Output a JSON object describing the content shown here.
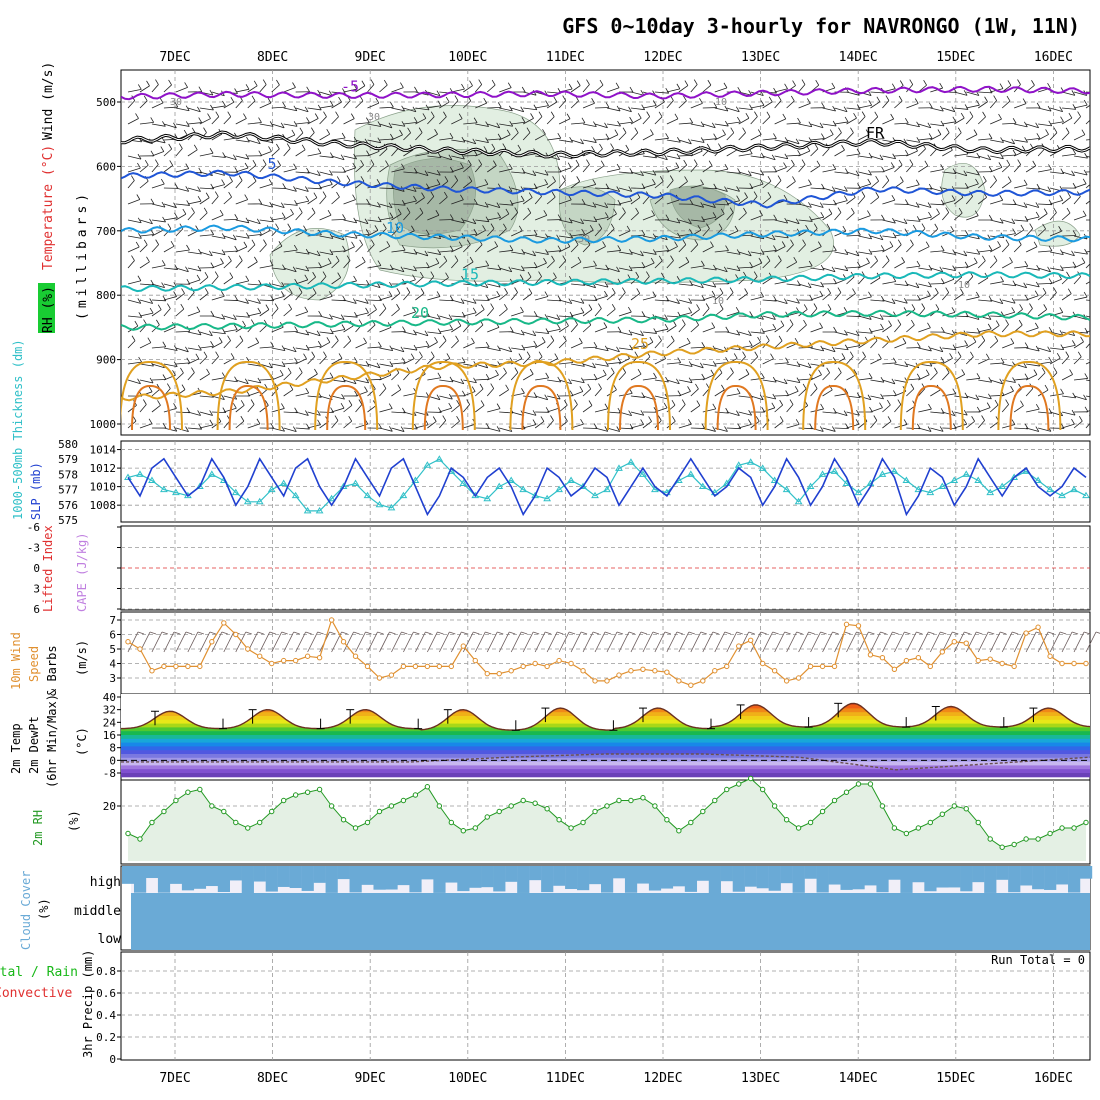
{
  "title": "GFS 0~10day 3-hourly for NAVRONGO (1W, 11N)",
  "dates": [
    "7DEC",
    "8DEC",
    "9DEC",
    "10DEC",
    "11DEC",
    "12DEC",
    "13DEC",
    "14DEC",
    "15DEC",
    "16DEC"
  ],
  "colors": {
    "purple": "#8f12c8",
    "black": "#000000",
    "blue": "#1f55d6",
    "skyblue": "#1a9ae0",
    "teal": "#19b8b8",
    "green": "#18b888",
    "gold": "#e0a020",
    "orange": "#e07820",
    "magenta": "#e0108c",
    "slp": "#2040d0",
    "thick": "#30c0c8",
    "wind": "#e09030",
    "rh": "#229922",
    "cloud": "#6aaad6",
    "cloudbg": "#f1eff8",
    "rhfill": "#e4f0e4"
  },
  "upper_air": {
    "panel_labels": {
      "wind": "Wind (m/s)",
      "temperature": "Temperature (°C)",
      "rh": "RH (%)",
      "unit": "(millibars)"
    },
    "yticks": [
      "500",
      "600",
      "700",
      "800",
      "900",
      "1000"
    ],
    "isotherms": [
      {
        "label": "-5",
        "level_mb": [
          492,
          488,
          490,
          489,
          487,
          491,
          486,
          482,
          480,
          483
        ]
      },
      {
        "label": "FR",
        "level_mb": [
          560,
          550,
          565,
          575,
          582,
          578,
          570,
          562,
          575,
          572
        ]
      },
      {
        "label": "5",
        "level_mb": [
          615,
          610,
          625,
          635,
          640,
          645,
          660,
          635,
          642,
          640
        ]
      },
      {
        "label": "10",
        "level_mb": [
          700,
          695,
          705,
          710,
          715,
          712,
          705,
          700,
          710,
          713
        ]
      },
      {
        "label": "15",
        "level_mb": [
          790,
          788,
          785,
          782,
          780,
          778,
          775,
          770,
          768,
          770
        ]
      },
      {
        "label": "20",
        "level_mb": [
          850,
          848,
          845,
          842,
          840,
          838,
          830,
          828,
          830,
          835
        ]
      },
      {
        "label": "25",
        "level_mb": [
          960,
          950,
          930,
          910,
          905,
          890,
          880,
          870,
          860,
          860
        ]
      }
    ],
    "rh_labels": [
      "30",
      "30",
      "10",
      "10",
      "30",
      "10"
    ]
  },
  "slp_thickness": {
    "left_labels": {
      "thickness": "1000-500mb Thickness (dm)",
      "slp": "SLP (mb)"
    },
    "thickness_ticks": [
      "580",
      "579",
      "578",
      "577",
      "576",
      "575"
    ],
    "slp_ticks": [
      "1014",
      "1012",
      "1010",
      "1008"
    ],
    "slp": [
      1011,
      1009,
      1012,
      1013,
      1011,
      1009,
      1010,
      1013,
      1011,
      1008,
      1010,
      1013,
      1011,
      1009,
      1012,
      1013,
      1010,
      1008,
      1010,
      1013,
      1011,
      1009,
      1012,
      1013,
      1010,
      1007,
      1009,
      1012,
      1011,
      1009,
      1011,
      1012,
      1010,
      1007,
      1009,
      1012,
      1011,
      1009,
      1010,
      1012,
      1011,
      1008,
      1010,
      1012,
      1010,
      1009,
      1011,
      1013,
      1011,
      1009,
      1010,
      1012,
      1011,
      1008,
      1010,
      1013,
      1011,
      1008,
      1010,
      1013,
      1011,
      1008,
      1010,
      1013,
      1011,
      1007,
      1009,
      1012,
      1011,
      1008,
      1010,
      1013,
      1011,
      1009,
      1011,
      1012,
      1010,
      1009,
      1010,
      1012,
      1011
    ],
    "thickness": [
      577.8,
      578.0,
      577.6,
      577.0,
      576.8,
      576.6,
      577.2,
      578.0,
      577.6,
      576.8,
      576.2,
      576.2,
      577.0,
      577.4,
      576.6,
      575.6,
      575.6,
      576.4,
      577.2,
      577.4,
      576.6,
      576.0,
      575.8,
      576.6,
      577.6,
      578.6,
      579.0,
      578.2,
      577.4,
      576.6,
      576.4,
      577.2,
      577.6,
      577.0,
      576.6,
      576.4,
      577.0,
      577.6,
      577.2,
      576.6,
      577.0,
      578.4,
      578.8,
      578.0,
      577.0,
      576.8,
      577.6,
      578.0,
      577.2,
      576.8,
      577.4,
      578.6,
      578.8,
      578.4,
      577.6,
      577.0,
      576.2,
      577.2,
      578.0,
      578.2,
      577.4,
      576.8,
      577.4,
      578.0,
      578.2,
      577.6,
      577.0,
      576.8,
      577.2,
      577.6,
      578.0,
      577.6,
      576.8,
      577.2,
      577.8,
      578.2,
      577.6,
      577.0,
      576.6,
      577.0,
      576.6
    ]
  },
  "cape_li": {
    "left_labels": {
      "li": "Lifted Index",
      "cape": "CAPE (J/kg)"
    },
    "yticks": [
      "-6",
      "-3",
      "0",
      "3",
      "6"
    ]
  },
  "wind10m": {
    "left_labels": {
      "title": "10m Wind",
      "speed": "Speed",
      "barbs": "& Barbs",
      "unit": "(m/s)"
    },
    "yticks": [
      "7",
      "6",
      "5",
      "4",
      "3"
    ],
    "speed": [
      5.5,
      5.0,
      3.5,
      3.8,
      3.8,
      3.8,
      3.8,
      5.5,
      6.8,
      6.0,
      5.0,
      4.5,
      4.0,
      4.2,
      4.2,
      4.5,
      4.4,
      7.0,
      5.5,
      4.5,
      3.8,
      3.0,
      3.2,
      3.8,
      3.8,
      3.8,
      3.8,
      3.8,
      5.2,
      4.2,
      3.3,
      3.3,
      3.5,
      3.8,
      4.0,
      3.8,
      4.2,
      4.0,
      3.5,
      2.8,
      2.8,
      3.2,
      3.5,
      3.6,
      3.5,
      3.4,
      2.8,
      2.5,
      2.8,
      3.5,
      3.8,
      5.2,
      5.6,
      4.0,
      3.5,
      2.8,
      3.0,
      3.8,
      3.8,
      3.8,
      6.7,
      6.6,
      4.6,
      4.4,
      3.6,
      4.2,
      4.4,
      3.8,
      4.8,
      5.5,
      5.4,
      4.2,
      4.3,
      4.0,
      3.8,
      6.1,
      6.5,
      4.5,
      4.0,
      4.0,
      4.0
    ]
  },
  "temp2m": {
    "left_labels": {
      "temp": "2m Temp",
      "dewpt": "2m DewPt",
      "minmax": "(6hr Min/Max)",
      "unit": "(°C)"
    },
    "yticks": [
      "40",
      "32",
      "24",
      "16",
      "8",
      "0",
      "-8"
    ],
    "daily_max": [
      31,
      32,
      32,
      32,
      33,
      33,
      35,
      36,
      34,
      33
    ],
    "daily_min": [
      20,
      20,
      20,
      19,
      19,
      20,
      21,
      21,
      21,
      21
    ],
    "dewpoint": [
      -1,
      -1,
      -1,
      -1,
      2,
      4,
      4,
      2,
      -6,
      -2,
      2
    ]
  },
  "rh2m": {
    "left_labels": {
      "title": "2m RH",
      "unit": "(%)"
    },
    "yticks": [
      "20"
    ],
    "values": [
      10,
      8,
      14,
      18,
      22,
      25,
      26,
      20,
      18,
      14,
      12,
      14,
      18,
      22,
      24,
      25,
      26,
      20,
      15,
      12,
      14,
      18,
      20,
      22,
      24,
      27,
      20,
      14,
      11,
      12,
      16,
      18,
      20,
      22,
      21,
      19,
      15,
      12,
      14,
      18,
      20,
      22,
      22,
      23,
      20,
      15,
      11,
      14,
      18,
      22,
      26,
      28,
      30,
      26,
      20,
      15,
      12,
      14,
      18,
      22,
      25,
      28,
      28,
      20,
      12,
      10,
      12,
      14,
      17,
      20,
      19,
      14,
      8,
      5,
      6,
      8,
      8,
      10,
      12,
      12,
      14
    ]
  },
  "clouds": {
    "left_labels": {
      "title": "Cloud Cover",
      "unit": "(%)"
    },
    "levels": [
      "high",
      "middle",
      "low"
    ]
  },
  "precip": {
    "left_labels": {
      "total": "Total / Rain",
      "conv": "Convective",
      "title": "3hr Precip (mm)"
    },
    "yticks": [
      "0.8",
      "0.6",
      "0.4",
      "0.2",
      "0"
    ],
    "run_total": "Run Total = 0"
  }
}
